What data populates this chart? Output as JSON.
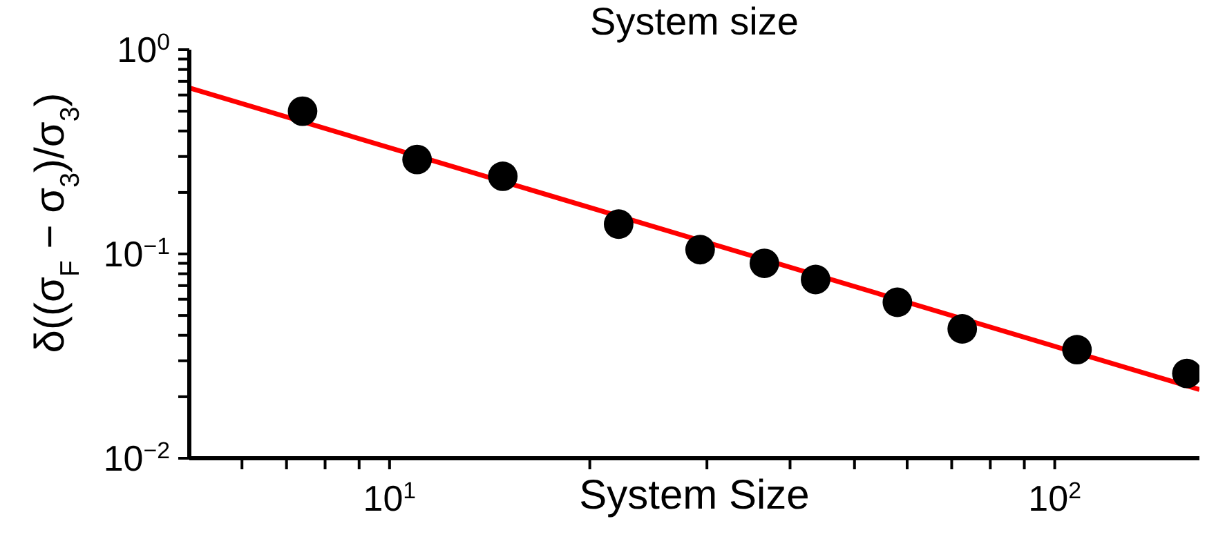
{
  "chart_data": {
    "type": "scatter",
    "title": "System size",
    "xlabel": "System Size",
    "ylabel": "δ((σ$_{F}$ − σ$_{3}$)/σ$_{3}$)",
    "log": "xy",
    "grid": false,
    "marker": "circle",
    "xlim": [
      5,
      165
    ],
    "ylim": [
      0.01,
      1
    ],
    "xticks": [
      {
        "value": 6,
        "label": null
      },
      {
        "value": 7,
        "label": null
      },
      {
        "value": 8,
        "label": null
      },
      {
        "value": 9,
        "label": null
      },
      {
        "value": 10,
        "label": "10$^{1}$"
      },
      {
        "value": 20,
        "label": null
      },
      {
        "value": 30,
        "label": null
      },
      {
        "value": 40,
        "label": null
      },
      {
        "value": 50,
        "label": null
      },
      {
        "value": 60,
        "label": null
      },
      {
        "value": 70,
        "label": null
      },
      {
        "value": 80,
        "label": null
      },
      {
        "value": 90,
        "label": null
      },
      {
        "value": 100,
        "label": "10$^{2}$"
      }
    ],
    "yticks": [
      {
        "value": 0.01,
        "label": "10$^{−2}$"
      },
      {
        "value": 0.02,
        "label": null
      },
      {
        "value": 0.03,
        "label": null
      },
      {
        "value": 0.04,
        "label": null
      },
      {
        "value": 0.05,
        "label": null
      },
      {
        "value": 0.06,
        "label": null
      },
      {
        "value": 0.07,
        "label": null
      },
      {
        "value": 0.08,
        "label": null
      },
      {
        "value": 0.09,
        "label": null
      },
      {
        "value": 0.1,
        "label": "10$^{−1}$"
      },
      {
        "value": 0.2,
        "label": null
      },
      {
        "value": 0.3,
        "label": null
      },
      {
        "value": 0.4,
        "label": null
      },
      {
        "value": 0.5,
        "label": null
      },
      {
        "value": 0.6,
        "label": null
      },
      {
        "value": 0.7,
        "label": null
      },
      {
        "value": 0.8,
        "label": null
      },
      {
        "value": 0.9,
        "label": null
      },
      {
        "value": 1,
        "label": "10$^{0}$"
      }
    ],
    "series": [
      {
        "color": "#000000",
        "x": [
          7.4,
          11.0,
          14.8,
          22.1,
          29.3,
          36.6,
          43.7,
          58.0,
          72.6,
          108,
          158
        ],
        "values": [
          0.5,
          0.29,
          0.24,
          0.14,
          0.105,
          0.09,
          0.075,
          0.058,
          0.043,
          0.034,
          0.026
        ]
      },
      {
        "type": "line",
        "color": "#ff0000",
        "marker": "none",
        "x": [
          5,
          165
        ],
        "values": [
          0.65,
          0.0217
        ]
      }
    ]
  }
}
